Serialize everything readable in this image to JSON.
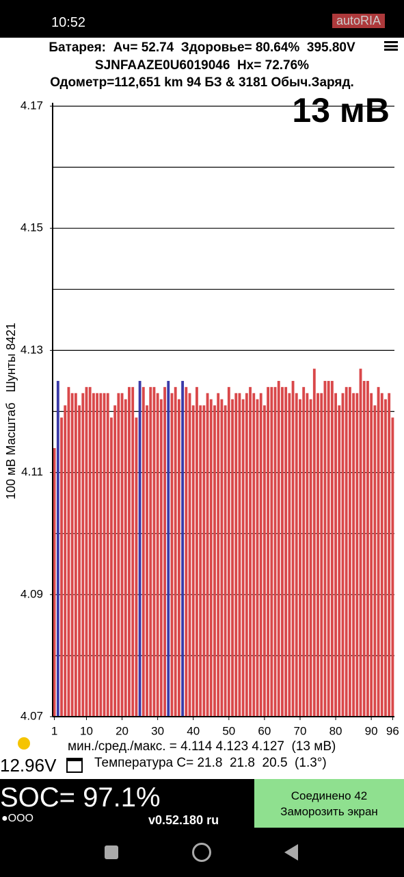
{
  "status_bar": {
    "time": "10:52",
    "watermark": "autoRIA"
  },
  "header": {
    "line1": "Батарея:  Ач= 52.74  Здоровье= 80.64%  395.80V",
    "line2": "SJNFAAZE0U6019046  Hx= 72.76%",
    "line3": "Одометр=112,651 km 94 БЗ & 3181 Обыч.Заряд."
  },
  "chart_data": {
    "type": "bar",
    "annotation": "13 мВ",
    "ylabel": "100 мВ Масштаб   Шунты 8421",
    "x": [
      1,
      2,
      3,
      4,
      5,
      6,
      7,
      8,
      9,
      10,
      11,
      12,
      13,
      14,
      15,
      16,
      17,
      18,
      19,
      20,
      21,
      22,
      23,
      24,
      25,
      26,
      27,
      28,
      29,
      30,
      31,
      32,
      33,
      34,
      35,
      36,
      37,
      38,
      39,
      40,
      41,
      42,
      43,
      44,
      45,
      46,
      47,
      48,
      49,
      50,
      51,
      52,
      53,
      54,
      55,
      56,
      57,
      58,
      59,
      60,
      61,
      62,
      63,
      64,
      65,
      66,
      67,
      68,
      69,
      70,
      71,
      72,
      73,
      74,
      75,
      76,
      77,
      78,
      79,
      80,
      81,
      82,
      83,
      84,
      85,
      86,
      87,
      88,
      89,
      90,
      91,
      92,
      93,
      94,
      95,
      96
    ],
    "values": [
      4.114,
      4.125,
      4.119,
      4.121,
      4.124,
      4.123,
      4.123,
      4.121,
      4.123,
      4.124,
      4.124,
      4.123,
      4.123,
      4.123,
      4.123,
      4.123,
      4.119,
      4.121,
      4.123,
      4.123,
      4.122,
      4.124,
      4.124,
      4.119,
      4.125,
      4.124,
      4.121,
      4.124,
      4.124,
      4.123,
      4.122,
      4.124,
      4.125,
      4.123,
      4.124,
      4.122,
      4.125,
      4.124,
      4.123,
      4.121,
      4.124,
      4.121,
      4.121,
      4.123,
      4.122,
      4.121,
      4.123,
      4.122,
      4.121,
      4.124,
      4.122,
      4.123,
      4.123,
      4.122,
      4.123,
      4.124,
      4.123,
      4.122,
      4.123,
      4.121,
      4.124,
      4.124,
      4.124,
      4.125,
      4.124,
      4.124,
      4.123,
      4.125,
      4.123,
      4.122,
      4.124,
      4.123,
      4.122,
      4.127,
      4.123,
      4.123,
      4.125,
      4.125,
      4.125,
      4.123,
      4.121,
      4.123,
      4.124,
      4.124,
      4.123,
      4.123,
      4.127,
      4.125,
      4.125,
      4.123,
      4.121,
      4.124,
      4.123,
      4.122,
      4.123,
      4.119
    ],
    "color": "#d9484a",
    "highlight_x": [
      2,
      25,
      33,
      37
    ],
    "highlight_color": "#3a3aa8",
    "xlim": [
      0.5,
      96.5
    ],
    "xticks": [
      1,
      10,
      20,
      30,
      40,
      50,
      60,
      70,
      80,
      90,
      96
    ],
    "ylim": [
      4.07,
      4.17
    ],
    "yticks": [
      4.07,
      4.09,
      4.11,
      4.13,
      4.15,
      4.17
    ],
    "gridlines": [
      4.08,
      4.09,
      4.1,
      4.11,
      4.12,
      4.13,
      4.14,
      4.15,
      4.16,
      4.17
    ],
    "grid": true
  },
  "stats": {
    "summary": "мин./сред./макс. = 4.114 4.123 4.127  (13 мВ)",
    "voltage": "12.96V",
    "temperature": "Температура C= 21.8  21.8  20.5  (1.3°)"
  },
  "footer": {
    "soc": "SOC= 97.1%",
    "dots": "●OOO",
    "version": "v0.52.180 ru",
    "status": "Соединено 42",
    "button": "Заморозить экран"
  }
}
